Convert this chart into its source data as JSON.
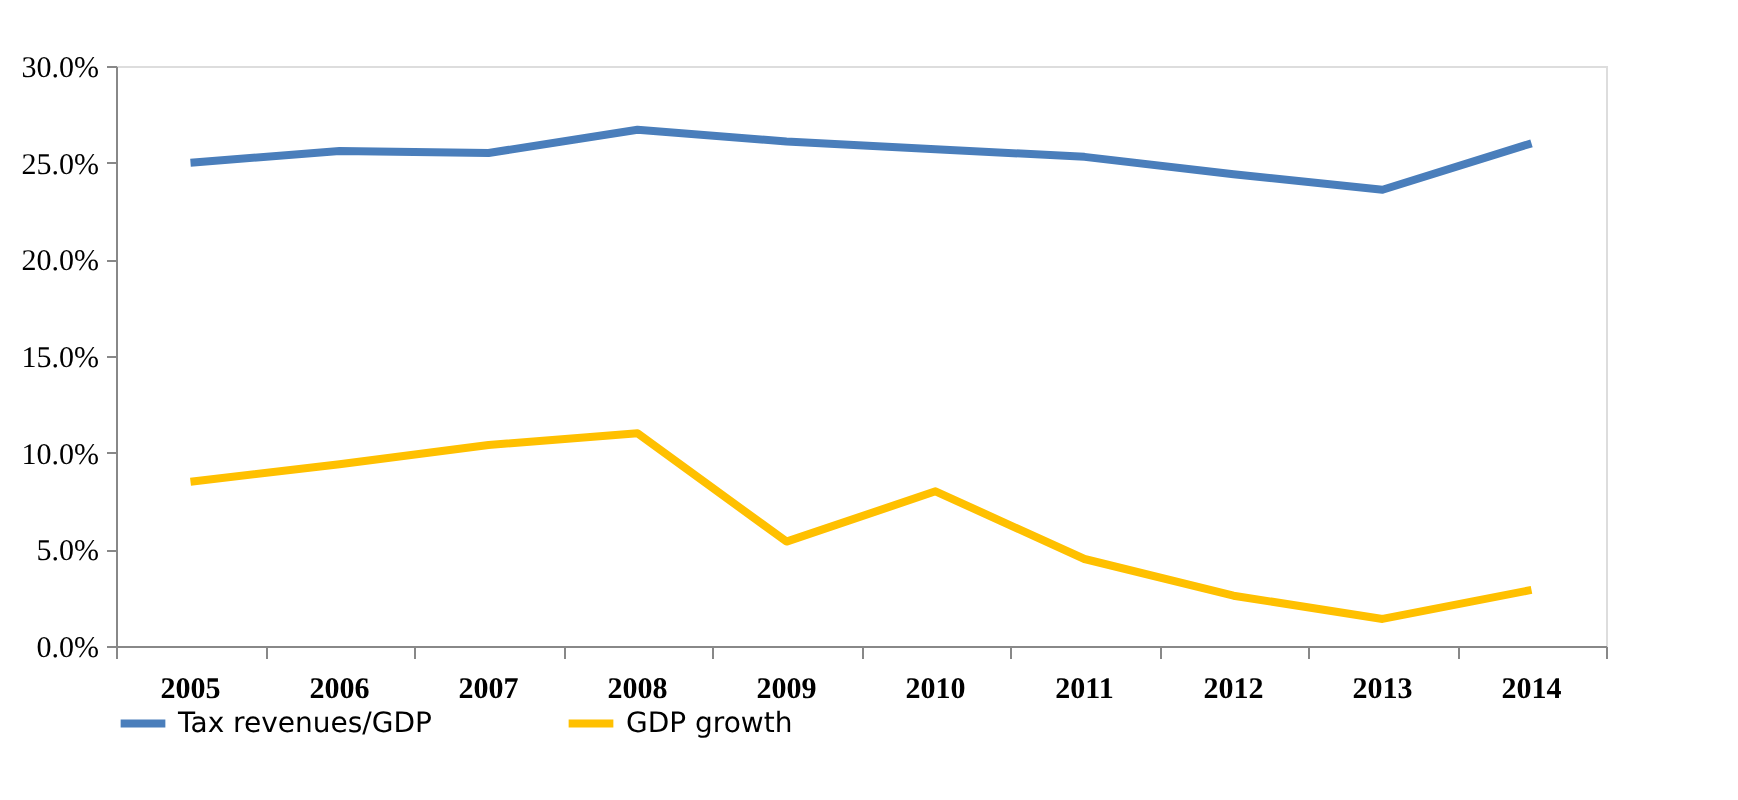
{
  "chart_data": {
    "type": "line",
    "categories": [
      "2005",
      "2006",
      "2007",
      "2008",
      "2009",
      "2010",
      "2011",
      "2012",
      "2013",
      "2014"
    ],
    "series": [
      {
        "name": "Tax revenues/GDP",
        "color": "#4a7ebb",
        "values": [
          25.0,
          25.6,
          25.5,
          26.7,
          26.1,
          25.7,
          25.3,
          24.4,
          23.6,
          26.0
        ]
      },
      {
        "name": "GDP growth",
        "color": "#ffc000",
        "values": [
          8.5,
          9.4,
          10.4,
          11.0,
          5.4,
          8.0,
          4.5,
          2.6,
          1.4,
          2.9
        ]
      }
    ],
    "ylim": [
      0,
      30
    ],
    "yticks": [
      {
        "value": 0,
        "label": "0.0%"
      },
      {
        "value": 5,
        "label": "5.0%"
      },
      {
        "value": 10,
        "label": "10.0%"
      },
      {
        "value": 15,
        "label": "15.0%"
      },
      {
        "value": 20,
        "label": "20.0%"
      },
      {
        "value": 25,
        "label": "25.0%"
      },
      {
        "value": 30,
        "label": "30.0%"
      }
    ],
    "grid": false,
    "legend": "bottom",
    "marker": "none",
    "line_style": "solid"
  }
}
